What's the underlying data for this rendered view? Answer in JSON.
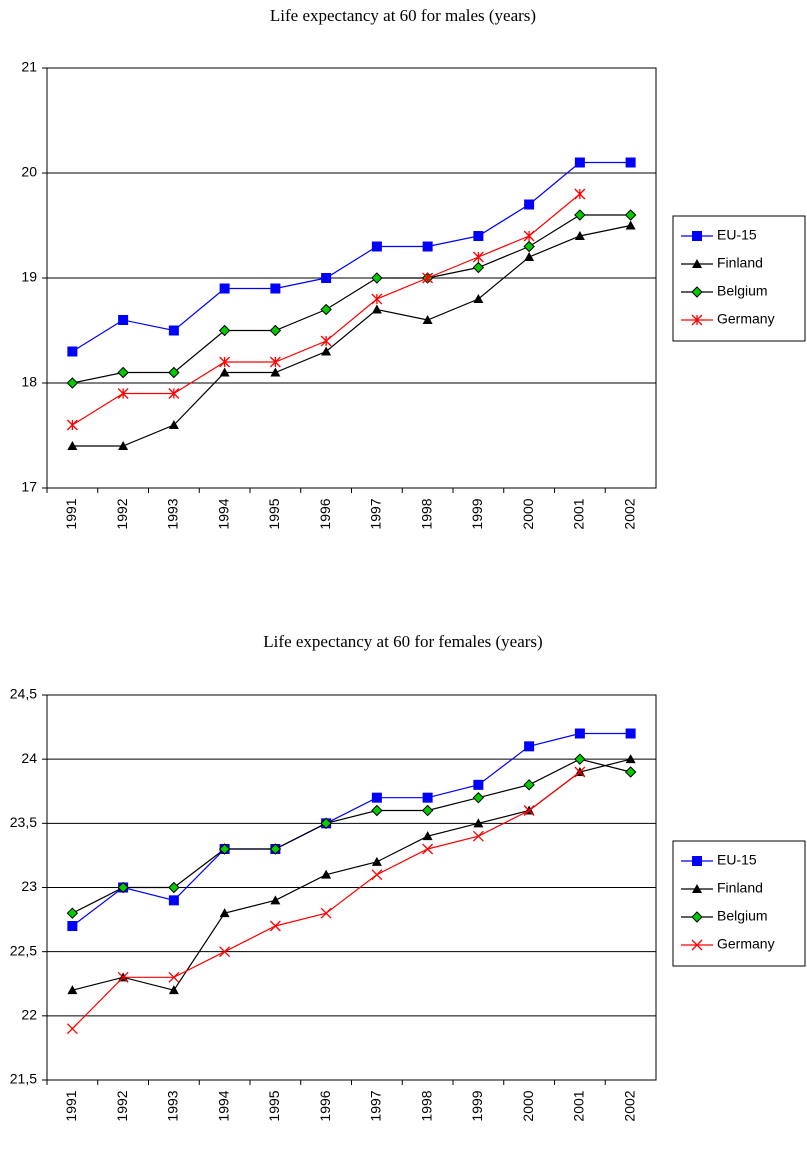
{
  "chart_data": [
    {
      "type": "line",
      "title": "Life expectancy at 60 for males (years)",
      "categories": [
        "1991",
        "1992",
        "1993",
        "1994",
        "1995",
        "1996",
        "1997",
        "1998",
        "1999",
        "2000",
        "2001",
        "2002"
      ],
      "ylim": [
        17,
        21
      ],
      "yticks": [
        17,
        18,
        19,
        20,
        21
      ],
      "grid": true,
      "legend": "right",
      "series": [
        {
          "name": "EU-15",
          "color": "#0000ff",
          "marker": "square",
          "marker_color": "#0000ff",
          "values": [
            18.3,
            18.6,
            18.5,
            18.9,
            18.9,
            19.0,
            19.3,
            19.3,
            19.4,
            19.7,
            20.1,
            20.1
          ]
        },
        {
          "name": "Finland",
          "color": "#000000",
          "marker": "triangle",
          "marker_color": "#000000",
          "values": [
            17.4,
            17.4,
            17.6,
            18.1,
            18.1,
            18.3,
            18.7,
            18.6,
            18.8,
            19.2,
            19.4,
            19.5
          ]
        },
        {
          "name": "Belgium",
          "color": "#000000",
          "marker": "diamond",
          "marker_color": "#00cc00",
          "values": [
            18.0,
            18.1,
            18.1,
            18.5,
            18.5,
            18.7,
            19.0,
            19.0,
            19.1,
            19.3,
            19.6,
            19.6
          ]
        },
        {
          "name": "Germany",
          "color": "#ff0000",
          "marker": "asterisk",
          "marker_color": "#ff0000",
          "values": [
            17.6,
            17.9,
            17.9,
            18.2,
            18.2,
            18.4,
            18.8,
            19.0,
            19.2,
            19.4,
            19.8,
            null
          ]
        }
      ]
    },
    {
      "type": "line",
      "title": "Life expectancy at 60 for females (years)",
      "categories": [
        "1991",
        "1992",
        "1993",
        "1994",
        "1995",
        "1996",
        "1997",
        "1998",
        "1999",
        "2000",
        "2001",
        "2002"
      ],
      "ylim": [
        21.5,
        24.5
      ],
      "yticks": [
        {
          "value": 21.5,
          "label": "21,5"
        },
        22,
        {
          "value": 22.5,
          "label": "22,5"
        },
        23,
        {
          "value": 23.5,
          "label": "23,5"
        },
        24,
        {
          "value": 24.5,
          "label": "24,5"
        }
      ],
      "grid": true,
      "legend": "right",
      "series": [
        {
          "name": "EU-15",
          "color": "#0000ff",
          "marker": "square",
          "marker_color": "#0000ff",
          "values": [
            22.7,
            23.0,
            22.9,
            23.3,
            23.3,
            23.5,
            23.7,
            23.7,
            23.8,
            24.1,
            24.2,
            24.2
          ]
        },
        {
          "name": "Finland",
          "color": "#000000",
          "marker": "triangle",
          "marker_color": "#000000",
          "values": [
            22.2,
            22.3,
            22.2,
            22.8,
            22.9,
            23.1,
            23.2,
            23.4,
            23.5,
            23.6,
            23.9,
            24.0
          ]
        },
        {
          "name": "Belgium",
          "color": "#000000",
          "marker": "diamond",
          "marker_color": "#00cc00",
          "values": [
            22.8,
            23.0,
            23.0,
            23.3,
            23.3,
            23.5,
            23.6,
            23.6,
            23.7,
            23.8,
            24.0,
            23.9
          ]
        },
        {
          "name": "Germany",
          "color": "#ff0000",
          "marker": "cross",
          "marker_color": "#ff0000",
          "values": [
            21.9,
            22.3,
            22.3,
            22.5,
            22.7,
            22.8,
            23.1,
            23.3,
            23.4,
            23.6,
            23.9,
            null
          ]
        }
      ]
    }
  ]
}
